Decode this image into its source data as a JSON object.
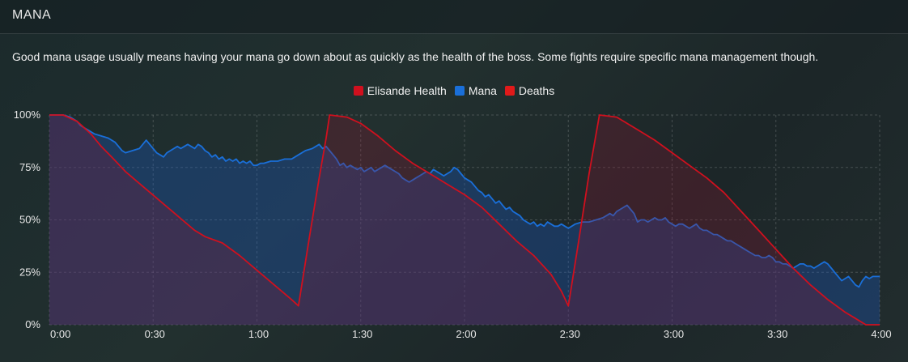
{
  "panel": {
    "title": "MANA",
    "description": "Good mana usage usually means having your mana go down about as quickly as the health of the boss. Some fights require specific mana management though."
  },
  "colors": {
    "health": "#d0101e",
    "mana": "#1a6fd9",
    "deaths": "#e01a1a"
  },
  "chart_data": {
    "type": "area",
    "legend_position": "top-center",
    "grid": true,
    "xlim": [
      0,
      240
    ],
    "ylim": [
      0,
      100
    ],
    "x_ticks": [
      {
        "value": 0,
        "label": "0:00"
      },
      {
        "value": 30,
        "label": "0:30"
      },
      {
        "value": 60,
        "label": "1:00"
      },
      {
        "value": 90,
        "label": "1:30"
      },
      {
        "value": 120,
        "label": "2:00"
      },
      {
        "value": 150,
        "label": "2:30"
      },
      {
        "value": 180,
        "label": "3:00"
      },
      {
        "value": 210,
        "label": "3:30"
      },
      {
        "value": 240,
        "label": "4:00"
      }
    ],
    "y_ticks": [
      {
        "value": 0,
        "label": "0%"
      },
      {
        "value": 25,
        "label": "25%"
      },
      {
        "value": 50,
        "label": "50%"
      },
      {
        "value": 75,
        "label": "75%"
      },
      {
        "value": 100,
        "label": "100%"
      }
    ],
    "series": [
      {
        "name": "Elisande Health",
        "points": [
          [
            0,
            100
          ],
          [
            4,
            100
          ],
          [
            8,
            97
          ],
          [
            12,
            91
          ],
          [
            15,
            85
          ],
          [
            18,
            80
          ],
          [
            22,
            73
          ],
          [
            27,
            66
          ],
          [
            32,
            59
          ],
          [
            37,
            52
          ],
          [
            42,
            45
          ],
          [
            45,
            42
          ],
          [
            50,
            39
          ],
          [
            55,
            33
          ],
          [
            60,
            26
          ],
          [
            65,
            19
          ],
          [
            70,
            12
          ],
          [
            72,
            9
          ],
          [
            75,
            40
          ],
          [
            78,
            70
          ],
          [
            80,
            89
          ],
          [
            81,
            100
          ],
          [
            86,
            99
          ],
          [
            90,
            96
          ],
          [
            95,
            90
          ],
          [
            100,
            83
          ],
          [
            105,
            77
          ],
          [
            110,
            72
          ],
          [
            115,
            67
          ],
          [
            120,
            62
          ],
          [
            125,
            56
          ],
          [
            130,
            48
          ],
          [
            135,
            40
          ],
          [
            140,
            33
          ],
          [
            145,
            24
          ],
          [
            148,
            16
          ],
          [
            150,
            9
          ],
          [
            153,
            40
          ],
          [
            156,
            72
          ],
          [
            159,
            100
          ],
          [
            164,
            99
          ],
          [
            170,
            93
          ],
          [
            175,
            88
          ],
          [
            180,
            82
          ],
          [
            185,
            76
          ],
          [
            190,
            70
          ],
          [
            195,
            63
          ],
          [
            200,
            54
          ],
          [
            205,
            45
          ],
          [
            210,
            36
          ],
          [
            215,
            27
          ],
          [
            220,
            19
          ],
          [
            225,
            12
          ],
          [
            230,
            6
          ],
          [
            233,
            3
          ],
          [
            236,
            0
          ],
          [
            240,
            0
          ]
        ]
      },
      {
        "name": "Mana",
        "points": [
          [
            0,
            100
          ],
          [
            4,
            100
          ],
          [
            6,
            99
          ],
          [
            8,
            97
          ],
          [
            9,
            95
          ],
          [
            11,
            93
          ],
          [
            13,
            91
          ],
          [
            15,
            90
          ],
          [
            17,
            89
          ],
          [
            19,
            87
          ],
          [
            20,
            85
          ],
          [
            21,
            83
          ],
          [
            22,
            82
          ],
          [
            24,
            83
          ],
          [
            26,
            84
          ],
          [
            27,
            86
          ],
          [
            28,
            88
          ],
          [
            29,
            86
          ],
          [
            30,
            84
          ],
          [
            31,
            82
          ],
          [
            32,
            81
          ],
          [
            33,
            80
          ],
          [
            34,
            82
          ],
          [
            35,
            83
          ],
          [
            36,
            84
          ],
          [
            37,
            85
          ],
          [
            38,
            84
          ],
          [
            39,
            85
          ],
          [
            40,
            86
          ],
          [
            41,
            85
          ],
          [
            42,
            84
          ],
          [
            43,
            86
          ],
          [
            44,
            85
          ],
          [
            45,
            83
          ],
          [
            46,
            82
          ],
          [
            47,
            80
          ],
          [
            48,
            81
          ],
          [
            49,
            79
          ],
          [
            50,
            80
          ],
          [
            51,
            78
          ],
          [
            52,
            79
          ],
          [
            53,
            78
          ],
          [
            54,
            79
          ],
          [
            55,
            77
          ],
          [
            56,
            78
          ],
          [
            57,
            77
          ],
          [
            58,
            78
          ],
          [
            59,
            76
          ],
          [
            60,
            76
          ],
          [
            61,
            77
          ],
          [
            62,
            77
          ],
          [
            64,
            78
          ],
          [
            66,
            78
          ],
          [
            68,
            79
          ],
          [
            70,
            79
          ],
          [
            72,
            81
          ],
          [
            74,
            83
          ],
          [
            76,
            84
          ],
          [
            77,
            85
          ],
          [
            78,
            86
          ],
          [
            79,
            84
          ],
          [
            80,
            85
          ],
          [
            81,
            83
          ],
          [
            82,
            81
          ],
          [
            83,
            79
          ],
          [
            84,
            76
          ],
          [
            85,
            77
          ],
          [
            86,
            75
          ],
          [
            87,
            76
          ],
          [
            88,
            75
          ],
          [
            89,
            74
          ],
          [
            90,
            75
          ],
          [
            91,
            73
          ],
          [
            92,
            74
          ],
          [
            93,
            75
          ],
          [
            94,
            73
          ],
          [
            95,
            74
          ],
          [
            96,
            75
          ],
          [
            97,
            76
          ],
          [
            98,
            75
          ],
          [
            99,
            74
          ],
          [
            100,
            73
          ],
          [
            101,
            72
          ],
          [
            102,
            70
          ],
          [
            103,
            69
          ],
          [
            104,
            68
          ],
          [
            105,
            69
          ],
          [
            106,
            70
          ],
          [
            107,
            71
          ],
          [
            108,
            72
          ],
          [
            109,
            73
          ],
          [
            110,
            72
          ],
          [
            111,
            74
          ],
          [
            112,
            73
          ],
          [
            113,
            72
          ],
          [
            114,
            71
          ],
          [
            115,
            72
          ],
          [
            116,
            73
          ],
          [
            117,
            75
          ],
          [
            118,
            74
          ],
          [
            119,
            72
          ],
          [
            120,
            70
          ],
          [
            121,
            69
          ],
          [
            122,
            68
          ],
          [
            123,
            66
          ],
          [
            124,
            64
          ],
          [
            125,
            63
          ],
          [
            126,
            61
          ],
          [
            127,
            62
          ],
          [
            128,
            60
          ],
          [
            129,
            58
          ],
          [
            130,
            59
          ],
          [
            131,
            57
          ],
          [
            132,
            55
          ],
          [
            133,
            56
          ],
          [
            134,
            54
          ],
          [
            135,
            53
          ],
          [
            136,
            52
          ],
          [
            137,
            50
          ],
          [
            138,
            49
          ],
          [
            139,
            48
          ],
          [
            140,
            49
          ],
          [
            141,
            47
          ],
          [
            142,
            48
          ],
          [
            143,
            47
          ],
          [
            144,
            49
          ],
          [
            145,
            48
          ],
          [
            146,
            47
          ],
          [
            147,
            47
          ],
          [
            148,
            48
          ],
          [
            149,
            47
          ],
          [
            150,
            46
          ],
          [
            152,
            48
          ],
          [
            154,
            49
          ],
          [
            156,
            49
          ],
          [
            158,
            50
          ],
          [
            160,
            51
          ],
          [
            161,
            52
          ],
          [
            162,
            53
          ],
          [
            163,
            52
          ],
          [
            164,
            54
          ],
          [
            165,
            55
          ],
          [
            166,
            56
          ],
          [
            167,
            57
          ],
          [
            168,
            55
          ],
          [
            169,
            53
          ],
          [
            170,
            49
          ],
          [
            171,
            50
          ],
          [
            172,
            50
          ],
          [
            173,
            49
          ],
          [
            174,
            50
          ],
          [
            175,
            51
          ],
          [
            176,
            50
          ],
          [
            177,
            50
          ],
          [
            178,
            51
          ],
          [
            179,
            49
          ],
          [
            180,
            48
          ],
          [
            181,
            47
          ],
          [
            182,
            48
          ],
          [
            183,
            48
          ],
          [
            184,
            47
          ],
          [
            185,
            46
          ],
          [
            186,
            47
          ],
          [
            187,
            48
          ],
          [
            188,
            46
          ],
          [
            189,
            45
          ],
          [
            190,
            45
          ],
          [
            191,
            44
          ],
          [
            192,
            43
          ],
          [
            193,
            43
          ],
          [
            194,
            42
          ],
          [
            195,
            41
          ],
          [
            196,
            40
          ],
          [
            197,
            40
          ],
          [
            198,
            39
          ],
          [
            199,
            38
          ],
          [
            200,
            37
          ],
          [
            201,
            36
          ],
          [
            202,
            35
          ],
          [
            203,
            34
          ],
          [
            204,
            33
          ],
          [
            205,
            33
          ],
          [
            206,
            32
          ],
          [
            207,
            32
          ],
          [
            208,
            33
          ],
          [
            209,
            32
          ],
          [
            210,
            30
          ],
          [
            211,
            30
          ],
          [
            212,
            29
          ],
          [
            213,
            29
          ],
          [
            214,
            28
          ],
          [
            215,
            27
          ],
          [
            216,
            28
          ],
          [
            217,
            29
          ],
          [
            218,
            29
          ],
          [
            219,
            28
          ],
          [
            220,
            28
          ],
          [
            221,
            27
          ],
          [
            222,
            28
          ],
          [
            223,
            29
          ],
          [
            224,
            30
          ],
          [
            225,
            29
          ],
          [
            226,
            27
          ],
          [
            227,
            25
          ],
          [
            228,
            23
          ],
          [
            229,
            21
          ],
          [
            230,
            22
          ],
          [
            231,
            23
          ],
          [
            232,
            21
          ],
          [
            233,
            19
          ],
          [
            234,
            18
          ],
          [
            235,
            21
          ],
          [
            236,
            23
          ],
          [
            237,
            22
          ],
          [
            238,
            23
          ],
          [
            240,
            23
          ]
        ]
      },
      {
        "name": "Deaths",
        "points": []
      }
    ]
  }
}
